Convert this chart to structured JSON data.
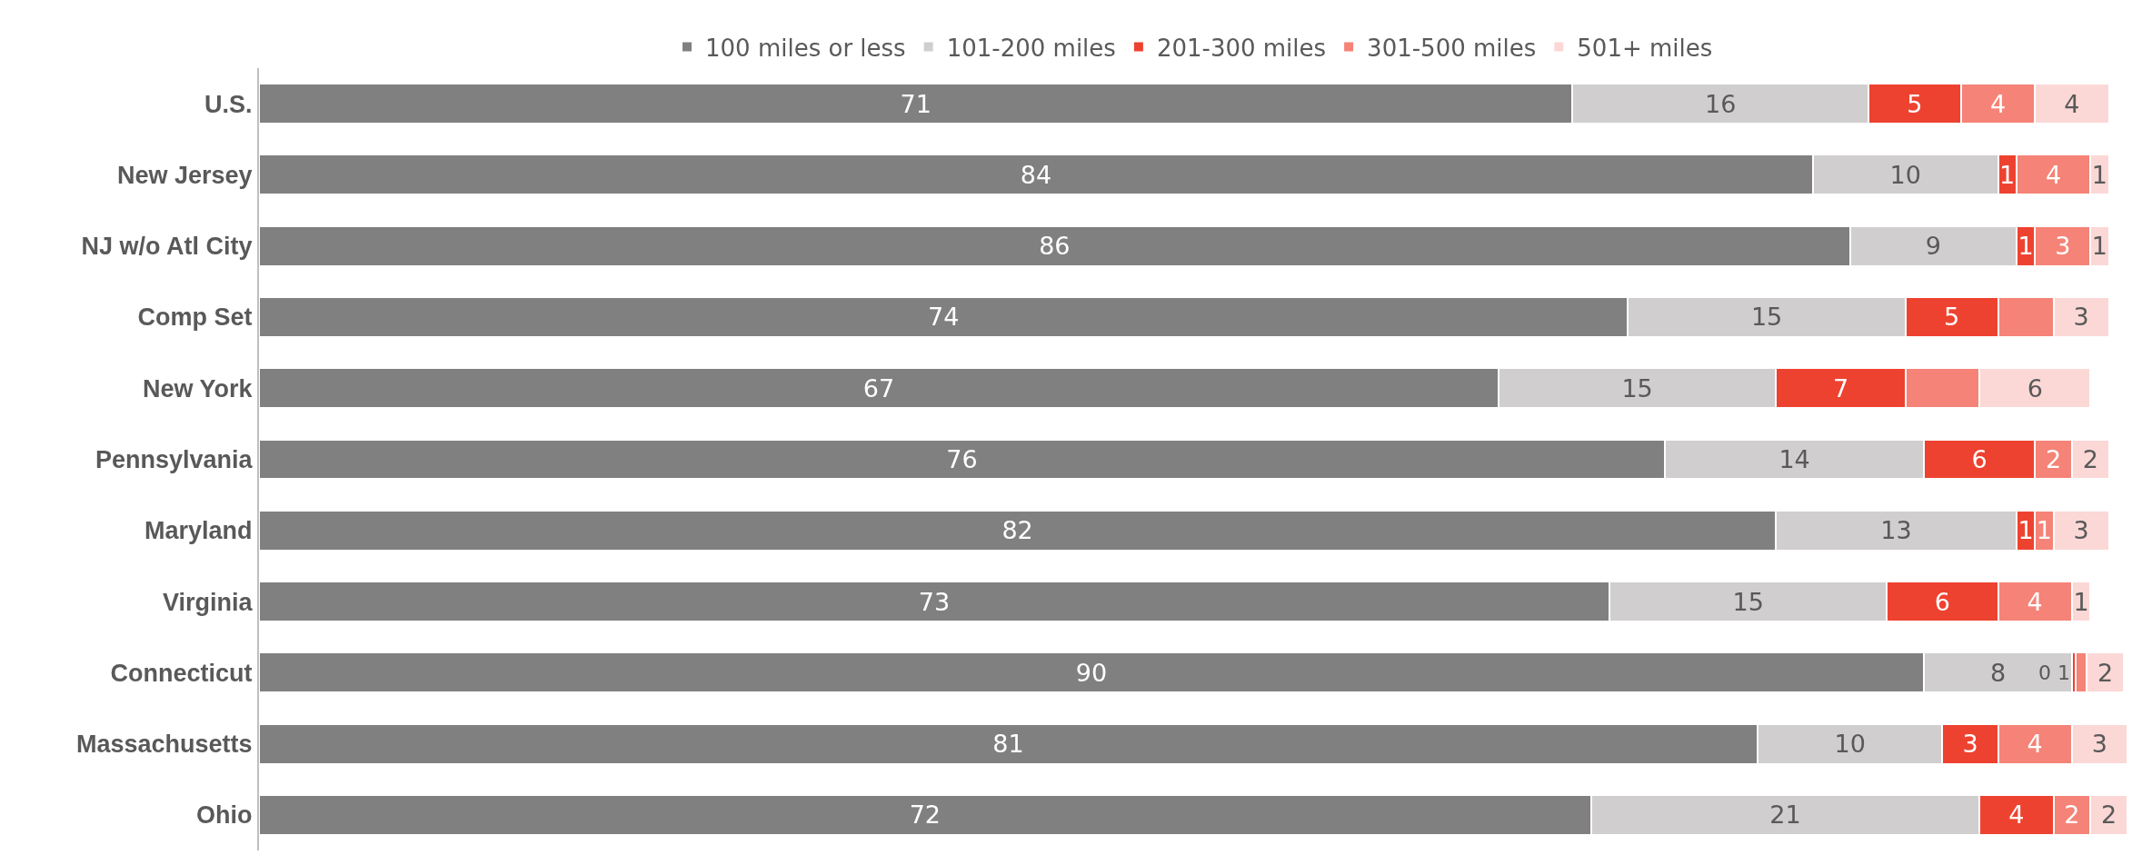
{
  "chart_data": {
    "type": "bar",
    "orientation": "horizontal",
    "stacked": true,
    "legend": "top",
    "tick_labels": "y",
    "grid": false,
    "xlim": [
      0,
      101
    ],
    "categories": [
      "U.S.",
      "New Jersey",
      "NJ w/o Atl City",
      "Comp Set",
      "New York",
      "Pennsylvania",
      "Maryland",
      "Virginia",
      "Connecticut",
      "Massachusetts",
      "Ohio"
    ],
    "series": [
      {
        "name": "100 miles or less",
        "color": "#808080",
        "values": [
          71,
          84,
          86,
          74,
          67,
          76,
          82,
          73,
          90,
          81,
          72
        ],
        "value_labels": [
          "71",
          "84",
          "86",
          "74",
          "67",
          "76",
          "82",
          "73",
          "90",
          "81",
          "72"
        ]
      },
      {
        "name": "101-200 miles",
        "color": "#d0cecf",
        "values": [
          16,
          10,
          9,
          15,
          15,
          14,
          13,
          15,
          8,
          10,
          21
        ],
        "value_labels": [
          "16",
          "10",
          "9",
          "15",
          "15",
          "14",
          "13",
          "15",
          "8",
          "10",
          "21"
        ]
      },
      {
        "name": "201-300 miles",
        "color": "#ee4230",
        "values": [
          5,
          1,
          1,
          5,
          7,
          6,
          1,
          6,
          0.2,
          3,
          4
        ],
        "value_labels": [
          "5",
          "1",
          "1",
          "5",
          "7",
          "6",
          "1",
          "6",
          "0",
          "3",
          "4"
        ]
      },
      {
        "name": "301-500 miles",
        "color": "#f58377",
        "values": [
          4,
          4,
          3,
          3,
          4,
          2,
          1,
          4,
          0.6,
          4,
          2
        ],
        "value_labels": [
          "4",
          "4",
          "3",
          null,
          null,
          "2",
          "1",
          "4",
          "1",
          "4",
          "2"
        ]
      },
      {
        "name": "501+ miles",
        "color": "#fbd8d6",
        "values": [
          4,
          1,
          1,
          3,
          6,
          2,
          3,
          1,
          2,
          3,
          2
        ],
        "value_labels": [
          "4",
          "1",
          "1",
          "3",
          "6",
          "2",
          "3",
          "1",
          "2",
          "3",
          "2"
        ]
      }
    ]
  }
}
